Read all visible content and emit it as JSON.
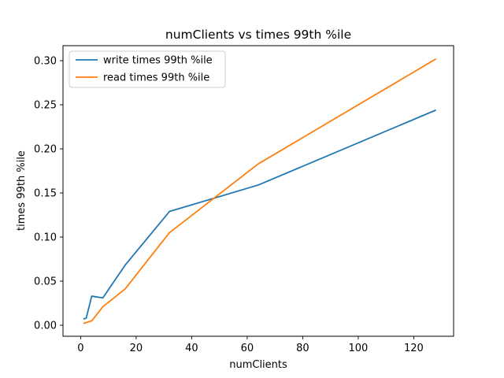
{
  "chart_data": {
    "type": "line",
    "title": "numClients vs times 99th %ile",
    "xlabel": "numClients",
    "ylabel": "times 99th %ile",
    "xlim": [
      -6.35,
      134.35
    ],
    "ylim": [
      -0.0125,
      0.317
    ],
    "xticks": [
      0,
      20,
      40,
      60,
      80,
      100,
      120
    ],
    "yticks": [
      0.0,
      0.05,
      0.1,
      0.15,
      0.2,
      0.25,
      0.3
    ],
    "ytick_format": 2,
    "grid": false,
    "legend_position": "top-left",
    "series": [
      {
        "name": "write times 99th %ile",
        "color": "#1f77b4",
        "x": [
          1,
          2,
          4,
          8,
          16,
          32,
          64,
          128
        ],
        "y": [
          0.007,
          0.008,
          0.033,
          0.031,
          0.068,
          0.129,
          0.159,
          0.244
        ]
      },
      {
        "name": "read times 99th %ile",
        "color": "#ff7f0e",
        "x": [
          1,
          2,
          4,
          8,
          16,
          32,
          64,
          128
        ],
        "y": [
          0.002,
          0.003,
          0.005,
          0.021,
          0.041,
          0.105,
          0.183,
          0.302
        ]
      }
    ]
  }
}
